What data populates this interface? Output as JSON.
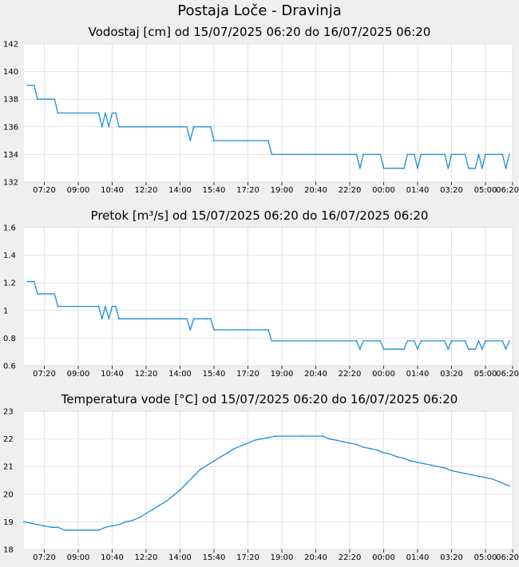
{
  "page": {
    "title": "Postaja Loče - Dravinja"
  },
  "chart_data": [
    {
      "type": "line",
      "title": "Vodostaj [cm] od 15/07/2025 06:20 do 16/07/2025 06:20",
      "xlabel": "",
      "ylabel": "",
      "xlim": [
        "2025-07-15 06:20",
        "2025-07-16 06:20"
      ],
      "ylim": [
        132,
        142
      ],
      "yticks": [
        "132",
        "134",
        "136",
        "138",
        "140",
        "142"
      ],
      "xticks": [
        "07:20",
        "09:00",
        "10:40",
        "12:20",
        "14:00",
        "15:40",
        "17:20",
        "19:00",
        "20:40",
        "22:20",
        "00:00",
        "01:40",
        "03:20",
        "05:00",
        "06:20"
      ],
      "grid": true,
      "color": "#1a8fd8",
      "series": [
        {
          "x": [
            "2025-07-15 06:30",
            "2025-07-15 06:40",
            "2025-07-15 06:50",
            "2025-07-15 07:00",
            "2025-07-15 07:10",
            "2025-07-15 07:20",
            "2025-07-15 07:30",
            "2025-07-15 07:40",
            "2025-07-15 07:50",
            "2025-07-15 08:00",
            "2025-07-15 10:00",
            "2025-07-15 10:10",
            "2025-07-15 10:20",
            "2025-07-15 10:30",
            "2025-07-15 10:40",
            "2025-07-15 10:50",
            "2025-07-15 11:00",
            "2025-07-15 11:10",
            "2025-07-15 14:20",
            "2025-07-15 14:30",
            "2025-07-15 14:40",
            "2025-07-15 15:20",
            "2025-07-15 15:30",
            "2025-07-15 15:40",
            "2025-07-15 18:10",
            "2025-07-15 18:20",
            "2025-07-15 18:30",
            "2025-07-15 22:40",
            "2025-07-15 22:50",
            "2025-07-15 23:00",
            "2025-07-15 23:40",
            "2025-07-15 23:50",
            "2025-07-16 00:00",
            "2025-07-16 00:40",
            "2025-07-16 01:00",
            "2025-07-16 01:10",
            "2025-07-16 01:30",
            "2025-07-16 01:40",
            "2025-07-16 01:50",
            "2025-07-16 03:00",
            "2025-07-16 03:10",
            "2025-07-16 03:20",
            "2025-07-16 04:00",
            "2025-07-16 04:10",
            "2025-07-16 04:30",
            "2025-07-16 04:40",
            "2025-07-16 04:50",
            "2025-07-16 05:00",
            "2025-07-16 05:50",
            "2025-07-16 06:00",
            "2025-07-16 06:10"
          ],
          "y": [
            139,
            139,
            139,
            138,
            138,
            138,
            138,
            138,
            138,
            137,
            137,
            136,
            137,
            136,
            137,
            137,
            136,
            136,
            136,
            135,
            136,
            136,
            136,
            135,
            135,
            135,
            134,
            134,
            133,
            134,
            134,
            134,
            133,
            133,
            133,
            134,
            134,
            133,
            134,
            134,
            133,
            134,
            134,
            133,
            133,
            134,
            133,
            134,
            134,
            133,
            134
          ]
        }
      ]
    },
    {
      "type": "line",
      "title": "Pretok [m³/s] od 15/07/2025 06:20 do 16/07/2025 06:20",
      "xlabel": "",
      "ylabel": "",
      "xlim": [
        "2025-07-15 06:20",
        "2025-07-16 06:20"
      ],
      "ylim": [
        0.6,
        1.6
      ],
      "yticks": [
        "0.6",
        "0.8",
        "1",
        "1.2",
        "1.4",
        "1.6"
      ],
      "xticks": [
        "07:20",
        "09:00",
        "10:40",
        "12:20",
        "14:00",
        "15:40",
        "17:20",
        "19:00",
        "20:40",
        "22:20",
        "00:00",
        "01:40",
        "03:20",
        "05:00",
        "06:20"
      ],
      "grid": true,
      "color": "#1a8fd8",
      "series": [
        {
          "x": [
            "2025-07-15 06:30",
            "2025-07-15 06:40",
            "2025-07-15 06:50",
            "2025-07-15 07:00",
            "2025-07-15 07:10",
            "2025-07-15 07:20",
            "2025-07-15 07:30",
            "2025-07-15 07:40",
            "2025-07-15 07:50",
            "2025-07-15 08:00",
            "2025-07-15 10:00",
            "2025-07-15 10:10",
            "2025-07-15 10:20",
            "2025-07-15 10:30",
            "2025-07-15 10:40",
            "2025-07-15 10:50",
            "2025-07-15 11:00",
            "2025-07-15 11:10",
            "2025-07-15 14:20",
            "2025-07-15 14:30",
            "2025-07-15 14:40",
            "2025-07-15 15:20",
            "2025-07-15 15:30",
            "2025-07-15 15:40",
            "2025-07-15 18:10",
            "2025-07-15 18:20",
            "2025-07-15 18:30",
            "2025-07-15 22:40",
            "2025-07-15 22:50",
            "2025-07-15 23:00",
            "2025-07-15 23:40",
            "2025-07-15 23:50",
            "2025-07-16 00:00",
            "2025-07-16 00:40",
            "2025-07-16 01:00",
            "2025-07-16 01:10",
            "2025-07-16 01:30",
            "2025-07-16 01:40",
            "2025-07-16 01:50",
            "2025-07-16 03:00",
            "2025-07-16 03:10",
            "2025-07-16 03:20",
            "2025-07-16 04:00",
            "2025-07-16 04:10",
            "2025-07-16 04:30",
            "2025-07-16 04:40",
            "2025-07-16 04:50",
            "2025-07-16 05:00",
            "2025-07-16 05:50",
            "2025-07-16 06:00",
            "2025-07-16 06:10"
          ],
          "y": [
            1.21,
            1.21,
            1.21,
            1.12,
            1.12,
            1.12,
            1.12,
            1.12,
            1.12,
            1.03,
            1.03,
            0.94,
            1.03,
            0.94,
            1.03,
            1.03,
            0.94,
            0.94,
            0.94,
            0.86,
            0.94,
            0.94,
            0.94,
            0.86,
            0.86,
            0.86,
            0.78,
            0.78,
            0.72,
            0.78,
            0.78,
            0.78,
            0.72,
            0.72,
            0.72,
            0.78,
            0.78,
            0.72,
            0.78,
            0.78,
            0.72,
            0.78,
            0.78,
            0.72,
            0.72,
            0.78,
            0.72,
            0.78,
            0.78,
            0.72,
            0.78
          ]
        }
      ]
    },
    {
      "type": "line",
      "title": "Temperatura vode [°C] od 15/07/2025 06:20 do 16/07/2025 06:20",
      "xlabel": "",
      "ylabel": "",
      "xlim": [
        "2025-07-15 06:20",
        "2025-07-16 06:20"
      ],
      "ylim": [
        18,
        23
      ],
      "yticks": [
        "18",
        "19",
        "20",
        "21",
        "22",
        "23"
      ],
      "xticks": [
        "07:20",
        "09:00",
        "10:40",
        "12:20",
        "14:00",
        "15:40",
        "17:20",
        "19:00",
        "20:40",
        "22:20",
        "00:00",
        "01:40",
        "03:20",
        "05:00",
        "06:20"
      ],
      "grid": true,
      "color": "#1a8fd8",
      "series": [
        {
          "x": [
            "2025-07-15 06:20",
            "2025-07-15 06:40",
            "2025-07-15 07:00",
            "2025-07-15 07:20",
            "2025-07-15 07:40",
            "2025-07-15 08:00",
            "2025-07-15 08:20",
            "2025-07-15 09:00",
            "2025-07-15 10:00",
            "2025-07-15 10:20",
            "2025-07-15 10:40",
            "2025-07-15 11:00",
            "2025-07-15 11:20",
            "2025-07-15 11:40",
            "2025-07-15 12:00",
            "2025-07-15 12:20",
            "2025-07-15 12:40",
            "2025-07-15 13:00",
            "2025-07-15 13:20",
            "2025-07-15 13:40",
            "2025-07-15 14:00",
            "2025-07-15 14:20",
            "2025-07-15 14:40",
            "2025-07-15 15:00",
            "2025-07-15 15:20",
            "2025-07-15 15:40",
            "2025-07-15 16:00",
            "2025-07-15 16:20",
            "2025-07-15 16:40",
            "2025-07-15 17:00",
            "2025-07-15 17:20",
            "2025-07-15 17:40",
            "2025-07-15 18:00",
            "2025-07-15 18:20",
            "2025-07-15 18:40",
            "2025-07-15 19:00",
            "2025-07-15 20:00",
            "2025-07-15 21:00",
            "2025-07-15 21:20",
            "2025-07-15 21:40",
            "2025-07-15 22:00",
            "2025-07-15 22:20",
            "2025-07-15 22:40",
            "2025-07-15 23:00",
            "2025-07-15 23:20",
            "2025-07-15 23:40",
            "2025-07-16 00:00",
            "2025-07-16 00:20",
            "2025-07-16 00:40",
            "2025-07-16 01:00",
            "2025-07-16 01:20",
            "2025-07-16 01:40",
            "2025-07-16 02:00",
            "2025-07-16 02:20",
            "2025-07-16 02:40",
            "2025-07-16 03:00",
            "2025-07-16 03:20",
            "2025-07-16 03:40",
            "2025-07-16 04:00",
            "2025-07-16 04:20",
            "2025-07-16 04:40",
            "2025-07-16 05:00",
            "2025-07-16 05:20",
            "2025-07-16 05:40",
            "2025-07-16 06:00",
            "2025-07-16 06:10"
          ],
          "y": [
            19.0,
            18.95,
            18.9,
            18.85,
            18.8,
            18.8,
            18.7,
            18.7,
            18.7,
            18.8,
            18.85,
            18.9,
            19.0,
            19.05,
            19.15,
            19.3,
            19.45,
            19.6,
            19.75,
            19.95,
            20.15,
            20.4,
            20.65,
            20.9,
            21.05,
            21.2,
            21.35,
            21.5,
            21.65,
            21.75,
            21.85,
            21.95,
            22.0,
            22.05,
            22.1,
            22.1,
            22.1,
            22.1,
            22.0,
            21.95,
            21.9,
            21.85,
            21.8,
            21.7,
            21.65,
            21.6,
            21.5,
            21.45,
            21.35,
            21.3,
            21.2,
            21.15,
            21.1,
            21.05,
            21.0,
            20.95,
            20.85,
            20.8,
            20.75,
            20.7,
            20.65,
            20.6,
            20.55,
            20.45,
            20.35,
            20.3
          ]
        }
      ]
    }
  ]
}
